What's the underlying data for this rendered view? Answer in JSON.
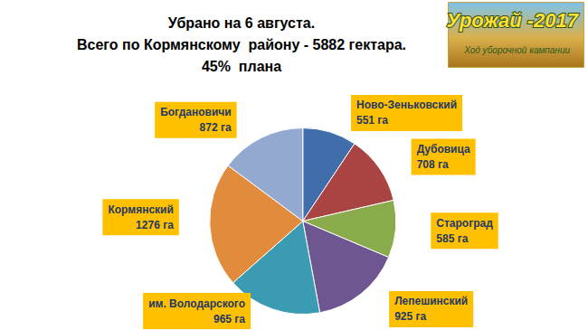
{
  "chart_data": {
    "type": "pie",
    "title": "Убрано на 6 августа.\nВсего по Кормянскому  району - 5882 гектара.\n45%  плана",
    "categories": [
      "Ново-Зеньковский",
      "Дубовица",
      "Староград",
      "Лепешинский",
      "им. Володарского",
      "Кормянский",
      "Богдановичи"
    ],
    "values": [
      551,
      708,
      585,
      925,
      965,
      1276,
      872
    ],
    "value_labels": [
      "551 га",
      "708 га",
      "585 га",
      "925 га",
      "965 га",
      "1276 га",
      "872 га"
    ],
    "colors": [
      "#3f6eaa",
      "#a94442",
      "#8aab4b",
      "#6e5691",
      "#3a9bb3",
      "#e18b3d",
      "#93a9cf"
    ],
    "data_labels": true,
    "annotations": [
      "Урожай -2017",
      "Ход уборочной кампании"
    ]
  }
}
